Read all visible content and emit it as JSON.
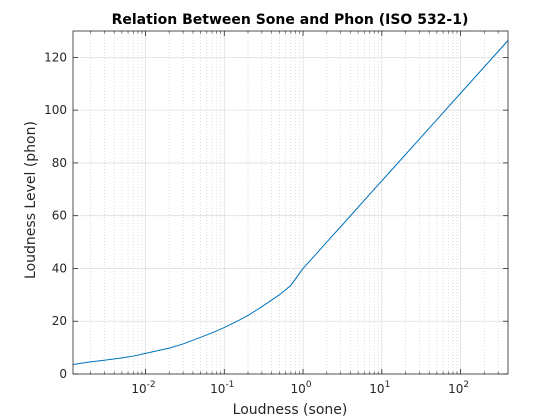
{
  "chart_data": {
    "type": "line",
    "title": "Relation Between Sone and Phon (ISO 532-1)",
    "xlabel": "Loudness (sone)",
    "ylabel": "Loudness Level (phon)",
    "xscale": "log",
    "xlim": [
      0.0012,
      400
    ],
    "ylim": [
      0,
      130
    ],
    "x_ticks": [
      0.01,
      0.1,
      1,
      10,
      100
    ],
    "x_tick_labels": [
      {
        "base": "10",
        "exp": "-2"
      },
      {
        "base": "10",
        "exp": "-1"
      },
      {
        "base": "10",
        "exp": "0"
      },
      {
        "base": "10",
        "exp": "1"
      },
      {
        "base": "10",
        "exp": "2"
      }
    ],
    "y_ticks": [
      0,
      20,
      40,
      60,
      80,
      100,
      120
    ],
    "y_tick_labels": [
      "0",
      "20",
      "40",
      "60",
      "80",
      "100",
      "120"
    ],
    "grid": true,
    "minor_grid": true,
    "legend": "none",
    "line_color": "#0072bd",
    "grid_color": "#dfdfdf",
    "series": [
      {
        "x": [
          0.0012,
          0.002,
          0.003,
          0.005,
          0.007,
          0.01,
          0.02,
          0.03,
          0.05,
          0.07,
          0.1,
          0.15,
          0.2,
          0.3,
          0.5,
          0.7,
          1,
          1.5,
          2,
          3,
          5,
          7,
          10,
          20,
          50,
          100,
          200,
          400
        ],
        "values": [
          3.6,
          4.6,
          5.2,
          6.1,
          6.8,
          7.8,
          9.8,
          11.4,
          13.9,
          15.6,
          17.6,
          20.2,
          22.2,
          25.5,
          30.0,
          33.6,
          40.0,
          45.8,
          50.0,
          55.8,
          63.2,
          68.1,
          73.2,
          83.2,
          96.4,
          106.4,
          116.4,
          126.4
        ]
      }
    ]
  }
}
